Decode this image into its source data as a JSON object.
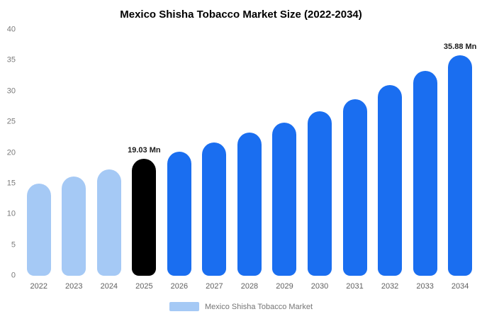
{
  "title": "Mexico Shisha Tobacco Market Size (2022-2034)",
  "legend": {
    "label": "Mexico Shisha Tobacco Market"
  },
  "colors": {
    "past": "#a5c9f5",
    "current": "#000000",
    "forecast": "#1a6ef0"
  },
  "y_axis": {
    "max": 40,
    "ticks": [
      0,
      5,
      10,
      15,
      20,
      25,
      30,
      35,
      40
    ]
  },
  "chart_data": {
    "type": "bar",
    "title": "Mexico Shisha Tobacco Market Size (2022-2034)",
    "xlabel": "",
    "ylabel": "",
    "ylim": [
      0,
      40
    ],
    "unit": "Mn",
    "grid": false,
    "legend_position": "bottom",
    "categories": [
      "2022",
      "2023",
      "2024",
      "2025",
      "2026",
      "2027",
      "2028",
      "2029",
      "2030",
      "2031",
      "2032",
      "2033",
      "2034"
    ],
    "values": [
      15.0,
      16.1,
      17.3,
      19.03,
      20.2,
      21.7,
      23.3,
      24.9,
      26.8,
      28.7,
      31.0,
      33.3,
      35.88
    ],
    "styles": [
      "past",
      "past",
      "past",
      "current",
      "forecast",
      "forecast",
      "forecast",
      "forecast",
      "forecast",
      "forecast",
      "forecast",
      "forecast",
      "forecast"
    ],
    "annotations": [
      {
        "category": "2025",
        "text": "19.03 Mn"
      },
      {
        "category": "2034",
        "text": "35.88 Mn"
      }
    ]
  }
}
